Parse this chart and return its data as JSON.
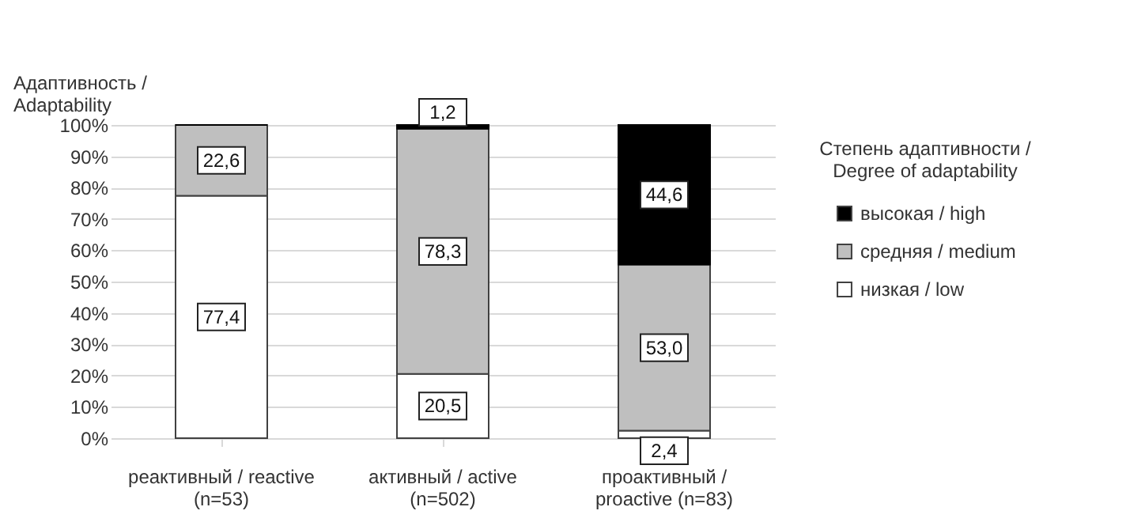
{
  "chart_data": {
    "type": "bar",
    "stacked": true,
    "ylabel": "Адаптивность / Adaptability",
    "legend_title": "Степень адаптивности / Degree of adaptability",
    "categories": [
      "реактивный / reactive (n=53)",
      "активный / active (n=502)",
      "проактивный / proactive (n=83)"
    ],
    "series": [
      {
        "name": "низкая / low",
        "color": "#ffffff",
        "values": [
          77.4,
          20.5,
          2.4
        ],
        "value_labels": [
          "77,4",
          "20,5",
          "2,4"
        ]
      },
      {
        "name": "средняя / medium",
        "color": "#bfbfbf",
        "values": [
          22.6,
          78.3,
          53.0
        ],
        "value_labels": [
          "22,6",
          "78,3",
          "53,0"
        ]
      },
      {
        "name": "высокая / high",
        "color": "#000000",
        "values": [
          0,
          1.2,
          44.6
        ],
        "value_labels": [
          null,
          "1,2",
          "44,6"
        ]
      }
    ],
    "ylim": [
      0,
      100
    ],
    "yticks": [
      {
        "value": 0,
        "label": "0%"
      },
      {
        "value": 10,
        "label": "10%"
      },
      {
        "value": 20,
        "label": "20%"
      },
      {
        "value": 30,
        "label": "30%"
      },
      {
        "value": 40,
        "label": "40%"
      },
      {
        "value": 50,
        "label": "50%"
      },
      {
        "value": 60,
        "label": "60%"
      },
      {
        "value": 70,
        "label": "70%"
      },
      {
        "value": 80,
        "label": "80%"
      },
      {
        "value": 90,
        "label": "90%"
      },
      {
        "value": 100,
        "label": "100%"
      }
    ],
    "grid": "y",
    "legend": "right"
  }
}
